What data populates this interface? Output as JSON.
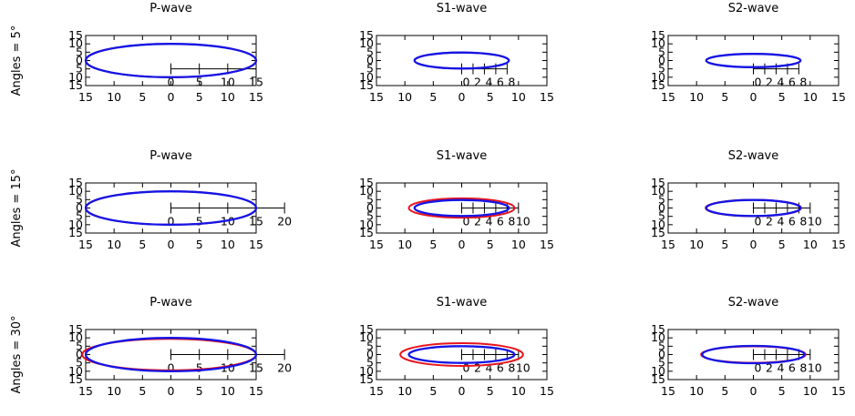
{
  "colors": {
    "red": "#e8141c",
    "blue": "#1414e6",
    "axis": "#000000",
    "background": "#ffffff"
  },
  "row_labels": [
    "Angles = 5°",
    "Angles = 15°",
    "Angles = 30°"
  ],
  "chart_data": [
    {
      "type": "line",
      "row": 0,
      "col": 0,
      "title": "P-wave",
      "xlim": [
        -15,
        15
      ],
      "ylim": [
        -15,
        15
      ],
      "xticks": [
        -15,
        -10,
        -5,
        0,
        5,
        10,
        15
      ],
      "xtick_labels": [
        "15",
        "10",
        "5",
        "0",
        "5",
        "10",
        "15"
      ],
      "yticks": [
        -15,
        -10,
        -5,
        0,
        5,
        10,
        15
      ],
      "ytick_labels": [
        "15",
        "10",
        "5",
        "0",
        "5",
        "10",
        "15"
      ],
      "scale_bar": {
        "ticks": [
          0,
          5,
          10,
          15
        ],
        "labels": [
          "0",
          "5",
          "10",
          "15"
        ],
        "label_offset": 0,
        "y": -5
      },
      "series": [
        {
          "color": "red",
          "ellipse": {
            "cx": 0,
            "cy": 0,
            "rx": 15.0,
            "ry": 10.0
          }
        },
        {
          "color": "blue",
          "ellipse": {
            "cx": 0,
            "cy": 0,
            "rx": 15.0,
            "ry": 10.0
          }
        }
      ]
    },
    {
      "type": "line",
      "row": 0,
      "col": 1,
      "title": "S1-wave",
      "xlim": [
        -15,
        15
      ],
      "ylim": [
        -15,
        15
      ],
      "xticks": [
        -15,
        -10,
        -5,
        0,
        5,
        10,
        15
      ],
      "xtick_labels": [
        "15",
        "10",
        "5",
        "0",
        "5",
        "10",
        "15"
      ],
      "yticks": [
        -15,
        -10,
        -5,
        0,
        5,
        10,
        15
      ],
      "ytick_labels": [
        "15",
        "10",
        "5",
        "0",
        "5",
        "10",
        "15"
      ],
      "scale_bar": {
        "ticks": [
          0,
          2,
          4,
          6,
          8
        ],
        "labels": [
          "0",
          "2",
          "4",
          "6",
          "8"
        ],
        "label_offset": 0.8,
        "y": -5
      },
      "series": [
        {
          "color": "red",
          "ellipse": {
            "cx": 0,
            "cy": 0,
            "rx": 8.3,
            "ry": 4.8
          }
        },
        {
          "color": "blue",
          "ellipse": {
            "cx": 0,
            "cy": 0,
            "rx": 8.3,
            "ry": 4.8
          }
        }
      ]
    },
    {
      "type": "line",
      "row": 0,
      "col": 2,
      "title": "S2-wave",
      "xlim": [
        -15,
        15
      ],
      "ylim": [
        -15,
        15
      ],
      "xticks": [
        -15,
        -10,
        -5,
        0,
        5,
        10,
        15
      ],
      "xtick_labels": [
        "15",
        "10",
        "5",
        "0",
        "5",
        "10",
        "15"
      ],
      "yticks": [
        -15,
        -10,
        -5,
        0,
        5,
        10,
        15
      ],
      "ytick_labels": [
        "15",
        "10",
        "5",
        "0",
        "5",
        "10",
        "15"
      ],
      "scale_bar": {
        "ticks": [
          0,
          2,
          4,
          6,
          8
        ],
        "labels": [
          "0",
          "2",
          "4",
          "6",
          "8"
        ],
        "label_offset": 0.8,
        "y": -5
      },
      "series": [
        {
          "color": "red",
          "ellipse": {
            "cx": 0,
            "cy": 0,
            "rx": 8.3,
            "ry": 4.0
          }
        },
        {
          "color": "blue",
          "ellipse": {
            "cx": 0,
            "cy": 0,
            "rx": 8.3,
            "ry": 4.0
          }
        }
      ]
    },
    {
      "type": "line",
      "row": 1,
      "col": 0,
      "title": "P-wave",
      "xlim": [
        -15,
        15
      ],
      "ylim": [
        -15,
        15
      ],
      "xticks": [
        -15,
        -10,
        -5,
        0,
        5,
        10,
        15
      ],
      "xtick_labels": [
        "15",
        "10",
        "5",
        "0",
        "5",
        "10",
        "15"
      ],
      "yticks": [
        -15,
        -10,
        -5,
        0,
        5,
        10,
        15
      ],
      "ytick_labels": [
        "15",
        "10",
        "5",
        "0",
        "5",
        "10",
        "15"
      ],
      "scale_bar": {
        "ticks": [
          0,
          5,
          10,
          15,
          20
        ],
        "labels": [
          "0",
          "5",
          "10",
          "15",
          "20"
        ],
        "label_offset": 0,
        "y": 0
      },
      "series": [
        {
          "color": "red",
          "ellipse": {
            "cx": 0,
            "cy": 0,
            "rx": 15.0,
            "ry": 10.0
          }
        },
        {
          "color": "blue",
          "ellipse": {
            "cx": 0,
            "cy": 0,
            "rx": 15.0,
            "ry": 10.0
          }
        }
      ]
    },
    {
      "type": "line",
      "row": 1,
      "col": 1,
      "title": "S1-wave",
      "xlim": [
        -15,
        15
      ],
      "ylim": [
        -15,
        15
      ],
      "xticks": [
        -15,
        -10,
        -5,
        0,
        5,
        10,
        15
      ],
      "xtick_labels": [
        "15",
        "10",
        "5",
        "0",
        "5",
        "10",
        "15"
      ],
      "yticks": [
        -15,
        -10,
        -5,
        0,
        5,
        10,
        15
      ],
      "ytick_labels": [
        "15",
        "10",
        "5",
        "0",
        "5",
        "10",
        "15"
      ],
      "scale_bar": {
        "ticks": [
          0,
          2,
          4,
          6,
          8,
          10
        ],
        "labels": [
          "0",
          "2",
          "4",
          "6",
          "8",
          "10"
        ],
        "label_offset": 0.8,
        "y": 0
      },
      "series": [
        {
          "color": "red",
          "ellipse": {
            "cx": 0,
            "cy": 0,
            "rx": 9.3,
            "ry": 5.8
          }
        },
        {
          "color": "blue",
          "ellipse": {
            "cx": 0,
            "cy": 0,
            "rx": 8.3,
            "ry": 4.8
          }
        }
      ]
    },
    {
      "type": "line",
      "row": 1,
      "col": 2,
      "title": "S2-wave",
      "xlim": [
        -15,
        15
      ],
      "ylim": [
        -15,
        15
      ],
      "xticks": [
        -15,
        -10,
        -5,
        0,
        5,
        10,
        15
      ],
      "xtick_labels": [
        "15",
        "10",
        "5",
        "0",
        "5",
        "10",
        "15"
      ],
      "yticks": [
        -15,
        -10,
        -5,
        0,
        5,
        10,
        15
      ],
      "ytick_labels": [
        "15",
        "10",
        "5",
        "0",
        "5",
        "10",
        "15"
      ],
      "scale_bar": {
        "ticks": [
          0,
          2,
          4,
          6,
          8,
          10
        ],
        "labels": [
          "0",
          "2",
          "4",
          "6",
          "8",
          "10"
        ],
        "label_offset": 0.8,
        "y": 0
      },
      "series": [
        {
          "color": "red",
          "ellipse": {
            "cx": 0,
            "cy": 0,
            "rx": 8.4,
            "ry": 4.9
          }
        },
        {
          "color": "blue",
          "ellipse": {
            "cx": 0,
            "cy": 0,
            "rx": 8.3,
            "ry": 4.8
          }
        }
      ]
    },
    {
      "type": "line",
      "row": 2,
      "col": 0,
      "title": "P-wave",
      "xlim": [
        -15,
        15
      ],
      "ylim": [
        -15,
        15
      ],
      "xticks": [
        -15,
        -10,
        -5,
        0,
        5,
        10,
        15
      ],
      "xtick_labels": [
        "15",
        "10",
        "5",
        "0",
        "5",
        "10",
        "15"
      ],
      "yticks": [
        -15,
        -10,
        -5,
        0,
        5,
        10,
        15
      ],
      "ytick_labels": [
        "15",
        "10",
        "5",
        "0",
        "5",
        "10",
        "15"
      ],
      "scale_bar": {
        "ticks": [
          0,
          5,
          10,
          15,
          20
        ],
        "labels": [
          "0",
          "5",
          "10",
          "15",
          "20"
        ],
        "label_offset": 0,
        "y": 0
      },
      "series": [
        {
          "color": "red",
          "ellipse": {
            "cx": -0.3,
            "cy": 0,
            "rx": 15.3,
            "ry": 9.4
          }
        },
        {
          "color": "blue",
          "ellipse": {
            "cx": 0,
            "cy": 0,
            "rx": 15.0,
            "ry": 10.0
          }
        }
      ]
    },
    {
      "type": "line",
      "row": 2,
      "col": 1,
      "title": "S1-wave",
      "xlim": [
        -15,
        15
      ],
      "ylim": [
        -15,
        15
      ],
      "xticks": [
        -15,
        -10,
        -5,
        0,
        5,
        10,
        15
      ],
      "xtick_labels": [
        "15",
        "10",
        "5",
        "0",
        "5",
        "10",
        "15"
      ],
      "yticks": [
        -15,
        -10,
        -5,
        0,
        5,
        10,
        15
      ],
      "ytick_labels": [
        "15",
        "10",
        "5",
        "0",
        "5",
        "10",
        "15"
      ],
      "scale_bar": {
        "ticks": [
          0,
          2,
          4,
          6,
          8,
          10
        ],
        "labels": [
          "0",
          "2",
          "4",
          "6",
          "8",
          "10"
        ],
        "label_offset": 0.8,
        "y": 0
      },
      "series": [
        {
          "color": "red",
          "ellipse": {
            "cx": 0,
            "cy": 0,
            "rx": 10.8,
            "ry": 6.8
          }
        },
        {
          "color": "blue",
          "ellipse": {
            "cx": 0,
            "cy": 0,
            "rx": 9.3,
            "ry": 5.0
          }
        }
      ]
    },
    {
      "type": "line",
      "row": 2,
      "col": 2,
      "title": "S2-wave",
      "xlim": [
        -15,
        15
      ],
      "ylim": [
        -15,
        15
      ],
      "xticks": [
        -15,
        -10,
        -5,
        0,
        5,
        10,
        15
      ],
      "xtick_labels": [
        "15",
        "10",
        "5",
        "0",
        "5",
        "10",
        "15"
      ],
      "yticks": [
        -15,
        -10,
        -5,
        0,
        5,
        10,
        15
      ],
      "ytick_labels": [
        "15",
        "10",
        "5",
        "0",
        "5",
        "10",
        "15"
      ],
      "scale_bar": {
        "ticks": [
          0,
          2,
          4,
          6,
          8,
          10
        ],
        "labels": [
          "0",
          "2",
          "4",
          "6",
          "8",
          "10"
        ],
        "label_offset": 0.8,
        "y": 0
      },
      "series": [
        {
          "color": "red",
          "ellipse": {
            "cx": 0,
            "cy": 0,
            "rx": 9.2,
            "ry": 4.9
          }
        },
        {
          "color": "blue",
          "ellipse": {
            "cx": 0,
            "cy": 0,
            "rx": 9.0,
            "ry": 5.2
          }
        }
      ]
    }
  ]
}
